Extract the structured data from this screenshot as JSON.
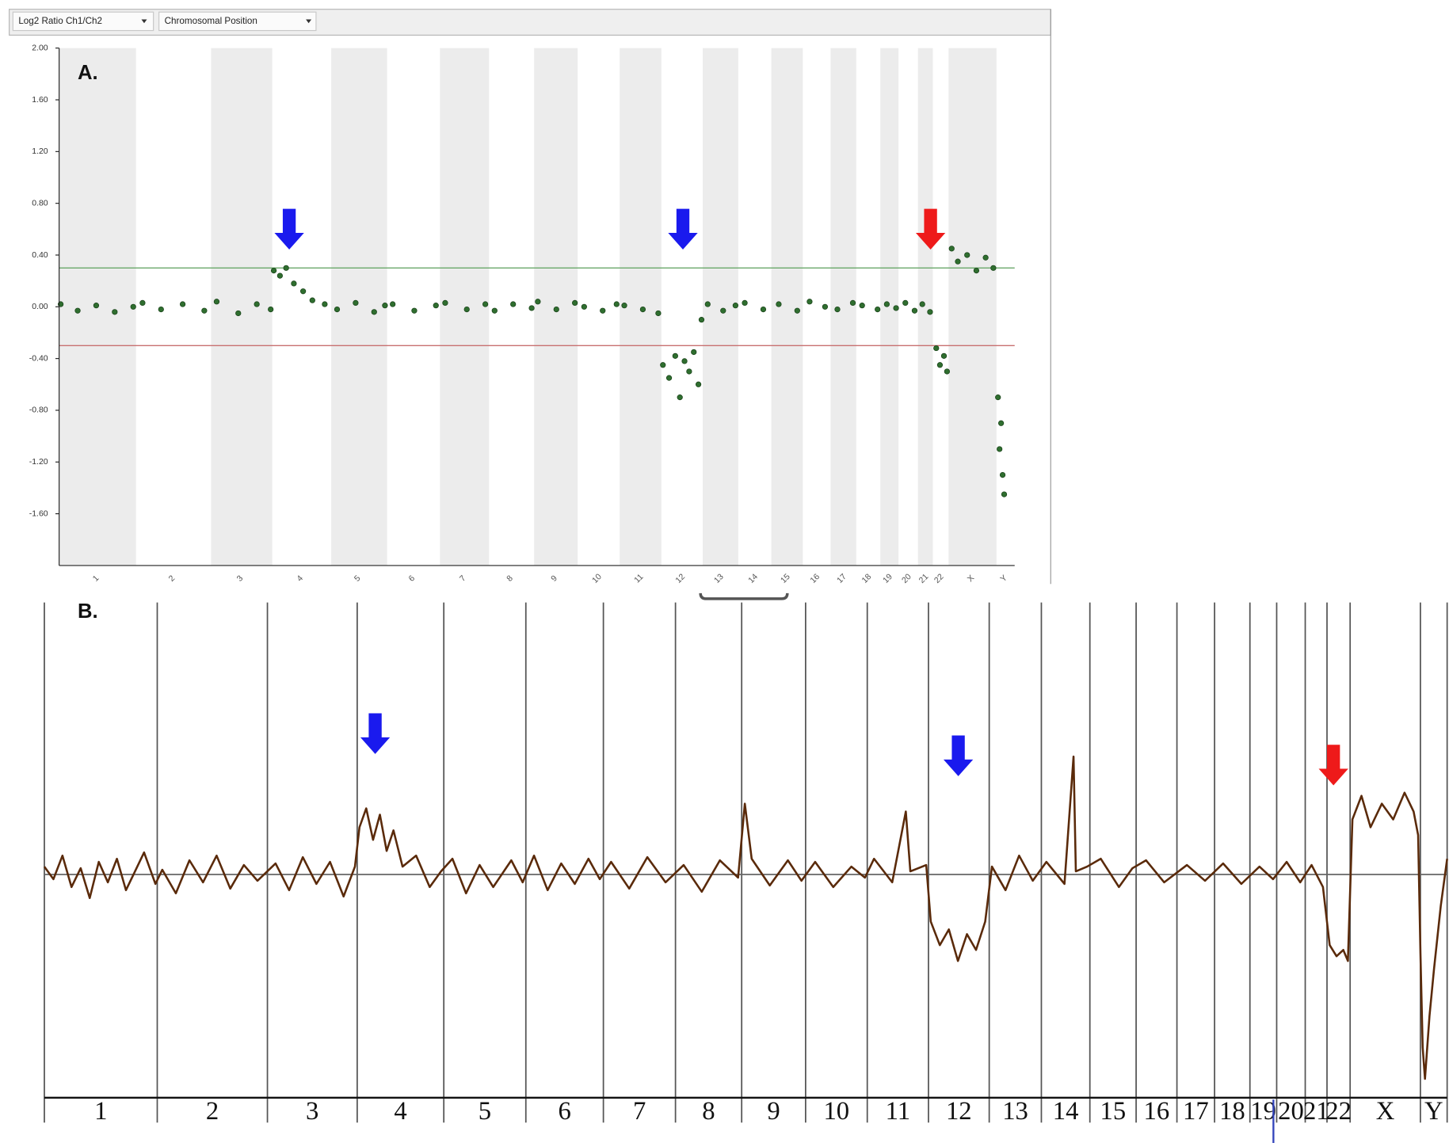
{
  "chart_data": [
    {
      "type": "scatter",
      "label": "A.",
      "controls": [
        "Log2 Ratio Ch1/Ch2",
        "Chromosomal Position"
      ],
      "categories": [
        "1",
        "2",
        "3",
        "4",
        "5",
        "6",
        "7",
        "8",
        "9",
        "10",
        "11",
        "12",
        "13",
        "14",
        "15",
        "16",
        "17",
        "18",
        "19",
        "20",
        "21",
        "22",
        "X",
        "Y"
      ],
      "boundaries": [
        0,
        249,
        492,
        690,
        881,
        1062,
        1233,
        1392,
        1538,
        1679,
        1815,
        1950,
        2084,
        2199,
        2306,
        2408,
        2498,
        2581,
        2659,
        2718,
        2781,
        2829,
        2880,
        3035,
        3094
      ],
      "bands": true,
      "band_color": "#ececec",
      "xlim": [
        0,
        3094
      ],
      "ylim": [
        -2.0,
        2.0
      ],
      "yticks": [
        {
          "value": 2,
          "label": "2.00"
        },
        {
          "value": 1.6,
          "label": "1.60"
        },
        {
          "value": 1.2,
          "label": "1.20"
        },
        {
          "value": 0.8,
          "label": "0.80"
        },
        {
          "value": 0.4,
          "label": "0.40"
        },
        {
          "value": 0,
          "label": "0.00"
        },
        {
          "value": -0.4,
          "label": "-0.40"
        },
        {
          "value": -0.8,
          "label": "-0.80"
        },
        {
          "value": -1.2,
          "label": "-1.20"
        },
        {
          "value": -1.6,
          "label": "-1.60"
        }
      ],
      "thresholds": [
        {
          "value": 0.3,
          "color": "#6aa86a"
        },
        {
          "value": -0.3,
          "color": "#c87070"
        }
      ],
      "color": "#2f6e2f",
      "x": [
        5,
        60,
        120,
        180,
        240,
        270,
        330,
        400,
        470,
        510,
        580,
        640,
        685,
        695,
        715,
        735,
        760,
        790,
        820,
        860,
        900,
        960,
        1020,
        1055,
        1080,
        1150,
        1220,
        1250,
        1320,
        1380,
        1410,
        1470,
        1530,
        1550,
        1610,
        1670,
        1700,
        1760,
        1805,
        1830,
        1890,
        1940,
        1955,
        1975,
        1995,
        2010,
        2025,
        2040,
        2055,
        2070,
        2080,
        2100,
        2150,
        2190,
        2220,
        2280,
        2330,
        2390,
        2430,
        2480,
        2520,
        2570,
        2600,
        2650,
        2680,
        2710,
        2740,
        2770,
        2795,
        2820,
        2840,
        2852,
        2865,
        2875,
        2890,
        2910,
        2940,
        2970,
        3000,
        3025,
        3040,
        3045,
        3050,
        3055,
        3060
      ],
      "values": [
        0.02,
        -0.03,
        0.01,
        -0.04,
        0.0,
        0.03,
        -0.02,
        0.02,
        -0.03,
        0.04,
        -0.05,
        0.02,
        -0.02,
        0.28,
        0.24,
        0.3,
        0.18,
        0.12,
        0.05,
        0.02,
        -0.02,
        0.03,
        -0.04,
        0.01,
        0.02,
        -0.03,
        0.01,
        0.03,
        -0.02,
        0.02,
        -0.03,
        0.02,
        -0.01,
        0.04,
        -0.02,
        0.03,
        0.0,
        -0.03,
        0.02,
        0.01,
        -0.02,
        -0.05,
        -0.45,
        -0.55,
        -0.38,
        -0.7,
        -0.42,
        -0.5,
        -0.35,
        -0.6,
        -0.1,
        0.02,
        -0.03,
        0.01,
        0.03,
        -0.02,
        0.02,
        -0.03,
        0.04,
        0.0,
        -0.02,
        0.03,
        0.01,
        -0.02,
        0.02,
        -0.01,
        0.03,
        -0.03,
        0.02,
        -0.04,
        -0.32,
        -0.45,
        -0.38,
        -0.5,
        0.45,
        0.35,
        0.4,
        0.28,
        0.38,
        0.3,
        -0.7,
        -1.1,
        -0.9,
        -1.3,
        -1.45
      ]
    },
    {
      "type": "line",
      "label": "B.",
      "categories": [
        "1",
        "2",
        "3",
        "4",
        "5",
        "6",
        "7",
        "8",
        "9",
        "10",
        "11",
        "12",
        "13",
        "14",
        "15",
        "16",
        "17",
        "18",
        "19",
        "20",
        "21",
        "22",
        "X",
        "Y"
      ],
      "boundaries": [
        0,
        249,
        492,
        690,
        881,
        1062,
        1233,
        1392,
        1538,
        1679,
        1815,
        1950,
        2084,
        2199,
        2306,
        2408,
        2498,
        2581,
        2659,
        2718,
        2781,
        2829,
        2880,
        3035,
        3094
      ],
      "bands": false,
      "xlim": [
        0,
        3094
      ],
      "ylim": [
        -1.42,
        1.73
      ],
      "reference_line": 0,
      "color": "#5a2a0a",
      "x": [
        0,
        20,
        40,
        60,
        80,
        100,
        120,
        140,
        160,
        180,
        200,
        220,
        245,
        260,
        290,
        320,
        350,
        380,
        410,
        440,
        470,
        510,
        540,
        570,
        600,
        630,
        660,
        685,
        695,
        710,
        725,
        740,
        755,
        770,
        790,
        820,
        850,
        875,
        900,
        930,
        960,
        990,
        1030,
        1055,
        1080,
        1110,
        1140,
        1170,
        1200,
        1225,
        1250,
        1290,
        1330,
        1370,
        1410,
        1450,
        1490,
        1530,
        1545,
        1560,
        1600,
        1640,
        1670,
        1700,
        1740,
        1780,
        1810,
        1830,
        1870,
        1900,
        1910,
        1945,
        1955,
        1975,
        1995,
        2015,
        2035,
        2055,
        2075,
        2090,
        2120,
        2150,
        2180,
        2210,
        2250,
        2270,
        2275,
        2300,
        2330,
        2370,
        2400,
        2430,
        2470,
        2520,
        2560,
        2600,
        2640,
        2680,
        2710,
        2740,
        2770,
        2795,
        2820,
        2835,
        2850,
        2865,
        2875,
        2885,
        2905,
        2925,
        2950,
        2975,
        3000,
        3020,
        3030,
        3035,
        3040,
        3045,
        3055,
        3065,
        3080,
        3094
      ],
      "values": [
        0.05,
        -0.03,
        0.12,
        -0.08,
        0.04,
        -0.15,
        0.08,
        -0.05,
        0.1,
        -0.1,
        0.02,
        0.14,
        -0.06,
        0.03,
        -0.12,
        0.09,
        -0.05,
        0.12,
        -0.09,
        0.06,
        -0.04,
        0.07,
        -0.1,
        0.11,
        -0.06,
        0.08,
        -0.14,
        0.05,
        0.3,
        0.42,
        0.22,
        0.38,
        0.15,
        0.28,
        0.05,
        0.12,
        -0.08,
        0.02,
        0.1,
        -0.12,
        0.06,
        -0.08,
        0.09,
        -0.05,
        0.12,
        -0.1,
        0.07,
        -0.06,
        0.1,
        -0.03,
        0.08,
        -0.09,
        0.11,
        -0.05,
        0.06,
        -0.11,
        0.09,
        -0.02,
        0.45,
        0.1,
        -0.07,
        0.09,
        -0.04,
        0.08,
        -0.08,
        0.05,
        -0.02,
        0.1,
        -0.05,
        0.4,
        0.02,
        0.06,
        -0.3,
        -0.45,
        -0.35,
        -0.55,
        -0.38,
        -0.48,
        -0.3,
        0.05,
        -0.1,
        0.12,
        -0.04,
        0.08,
        -0.06,
        0.75,
        0.02,
        0.05,
        0.1,
        -0.08,
        0.04,
        0.09,
        -0.05,
        0.06,
        -0.04,
        0.07,
        -0.06,
        0.05,
        -0.03,
        0.08,
        -0.05,
        0.06,
        -0.08,
        -0.45,
        -0.52,
        -0.48,
        -0.55,
        0.35,
        0.5,
        0.3,
        0.45,
        0.35,
        0.52,
        0.4,
        0.25,
        -0.5,
        -1.1,
        -1.3,
        -0.9,
        -0.6,
        -0.2,
        0.1
      ]
    }
  ]
}
